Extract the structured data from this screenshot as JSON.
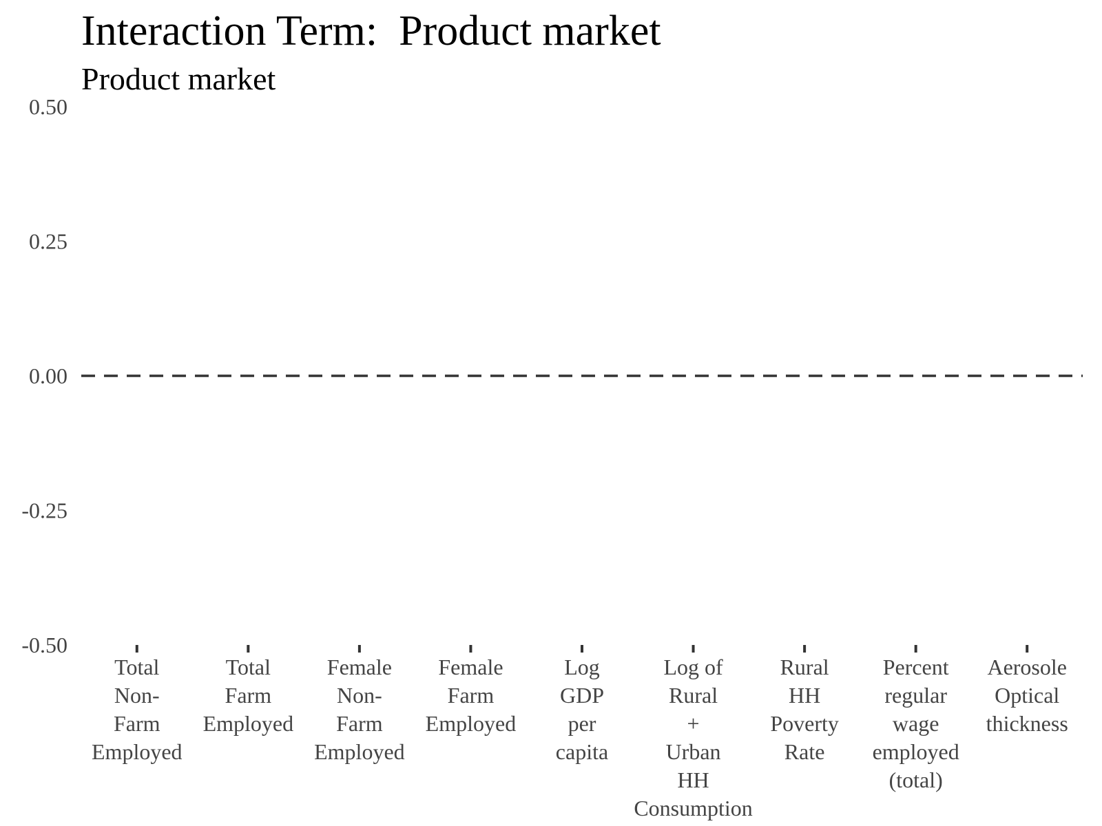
{
  "chart_data": {
    "type": "scatter",
    "title": "Interaction Term:  Product market",
    "subtitle": "Product market",
    "xlabel": "",
    "ylabel": "",
    "ylim": [
      -0.5,
      0.5
    ],
    "y_ticks": [
      "0.50",
      "0.25",
      "0.00",
      "-0.25",
      "-0.50"
    ],
    "y_tick_values": [
      0.5,
      0.25,
      0.0,
      -0.25,
      -0.5
    ],
    "categories": [
      [
        "Total",
        "Non-",
        "Farm",
        "Employed"
      ],
      [
        "Total",
        "Farm",
        "Employed"
      ],
      [
        "Female",
        "Non-",
        "Farm",
        "Employed"
      ],
      [
        "Female",
        "Farm",
        "Employed"
      ],
      [
        "Log",
        "GDP",
        "per",
        "capita"
      ],
      [
        "Log of",
        "Rural",
        "+",
        "Urban",
        "HH",
        "Consumption"
      ],
      [
        "Rural",
        "HH",
        "Poverty",
        "Rate"
      ],
      [
        "Percent",
        "regular",
        "wage",
        "employed",
        "(total)"
      ],
      [
        "Aerosole",
        "Optical",
        "thickness"
      ]
    ],
    "series": [],
    "reference_line": {
      "y": 0,
      "style": "dashed",
      "color": "#333333"
    },
    "grid": false,
    "legend": "none"
  }
}
